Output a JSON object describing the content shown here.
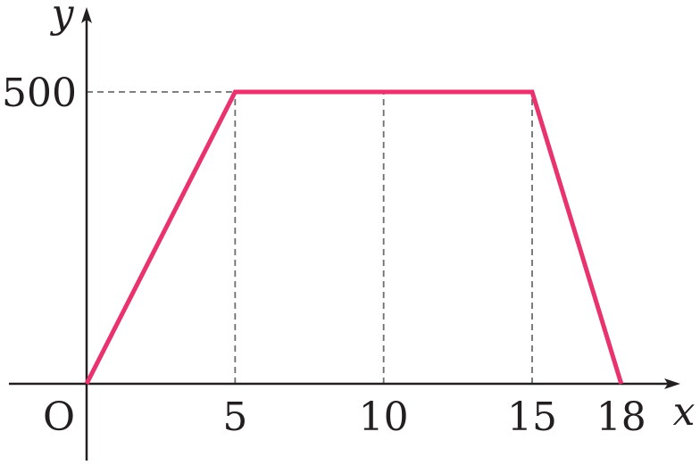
{
  "chart_data": {
    "type": "line",
    "title": "",
    "xlabel": "x",
    "ylabel": "y",
    "origin_label": "O",
    "xlim": [
      -5,
      20.5
    ],
    "ylim": [
      -160,
      620
    ],
    "x_ticks": [
      {
        "value": 5,
        "label": "5"
      },
      {
        "value": 10,
        "label": "10"
      },
      {
        "value": 15,
        "label": "15"
      },
      {
        "value": 18,
        "label": "18"
      }
    ],
    "y_ticks": [
      {
        "value": 500,
        "label": "500"
      }
    ],
    "series": [
      {
        "color": "#e8336e",
        "points": [
          {
            "x": 0,
            "y": 0
          },
          {
            "x": 5,
            "y": 500
          },
          {
            "x": 15,
            "y": 500
          },
          {
            "x": 18,
            "y": 0
          }
        ]
      }
    ],
    "guides": {
      "vertical_at_x": [
        5,
        10,
        15
      ],
      "horizontal_at_y": [
        500
      ],
      "style": "dashed"
    },
    "grid": false,
    "legend": "none"
  }
}
